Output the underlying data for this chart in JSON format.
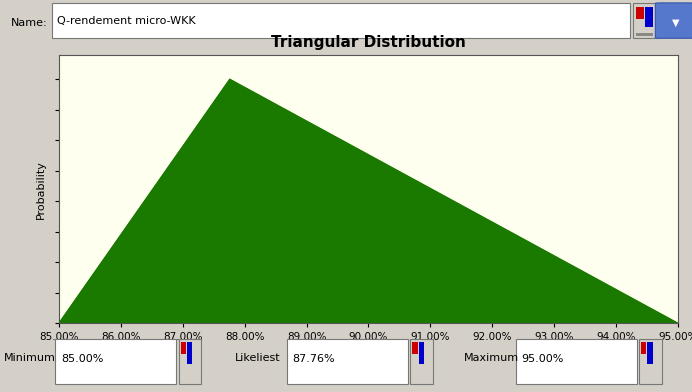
{
  "title": "Triangular Distribution",
  "name_label": "Name:",
  "name_value": "Q-rendement micro-WKK",
  "minimum": 0.85,
  "likeliest": 0.8776,
  "maximum": 0.95,
  "x_min": 0.85,
  "x_max": 0.95,
  "x_ticks": [
    0.85,
    0.86,
    0.87,
    0.88,
    0.89,
    0.9,
    0.91,
    0.92,
    0.93,
    0.94,
    0.95
  ],
  "ylabel": "Probability",
  "fill_color": "#1a7a00",
  "plot_bg_color": "#fffff0",
  "outer_bg_color": "#d4d0c8",
  "title_fontsize": 11,
  "label_fontsize": 8,
  "tick_fontsize": 7.5,
  "name_fontsize": 8,
  "min_label": "Minimum",
  "min_val_label": "85.00%",
  "likeliest_label": "Likeliest",
  "likeliest_val_label": "87.76%",
  "max_label": "Maximum",
  "max_val_label": "95.00%",
  "fig_width": 6.92,
  "fig_height": 3.92,
  "fig_dpi": 100
}
